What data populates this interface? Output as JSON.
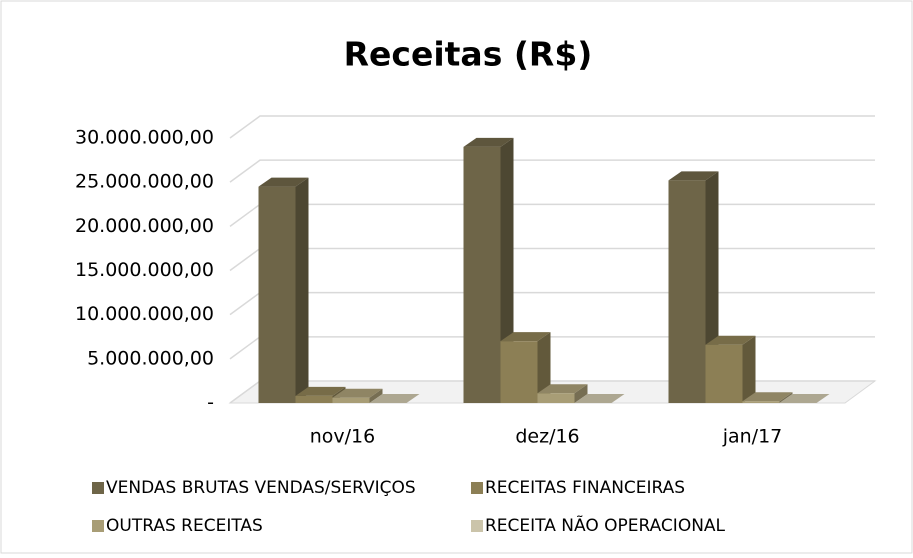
{
  "chart_data": {
    "type": "bar3d",
    "title": "Receitas (R$)",
    "categories": [
      "nov/16",
      "dez/16",
      "jan/17"
    ],
    "series": [
      {
        "name": "VENDAS BRUTAS VENDAS/SERVIÇOS",
        "color": "#6e6548",
        "values": [
          24500000,
          29000000,
          25200000
        ]
      },
      {
        "name": "RECEITAS FINANCEIRAS",
        "color": "#8c7f55",
        "values": [
          800000,
          7000000,
          6600000
        ]
      },
      {
        "name": "OUTRAS RECEITAS",
        "color": "#a89d76",
        "values": [
          600000,
          1100000,
          200000
        ]
      },
      {
        "name": "RECEITA NÃO OPERACIONAL",
        "color": "#cbc4aa",
        "values": [
          0,
          0,
          0
        ]
      }
    ],
    "ylim": [
      0,
      30000000
    ],
    "yticks": [
      {
        "value": 0,
        "label": "-"
      },
      {
        "value": 5000000,
        "label": "5.000.000,00"
      },
      {
        "value": 10000000,
        "label": "10.000.000,00"
      },
      {
        "value": 15000000,
        "label": "15.000.000,00"
      },
      {
        "value": 20000000,
        "label": "20.000.000,00"
      },
      {
        "value": 25000000,
        "label": "25.000.000,00"
      },
      {
        "value": 30000000,
        "label": "30.000.000,00"
      }
    ],
    "grid": true,
    "legend": "bottom"
  }
}
